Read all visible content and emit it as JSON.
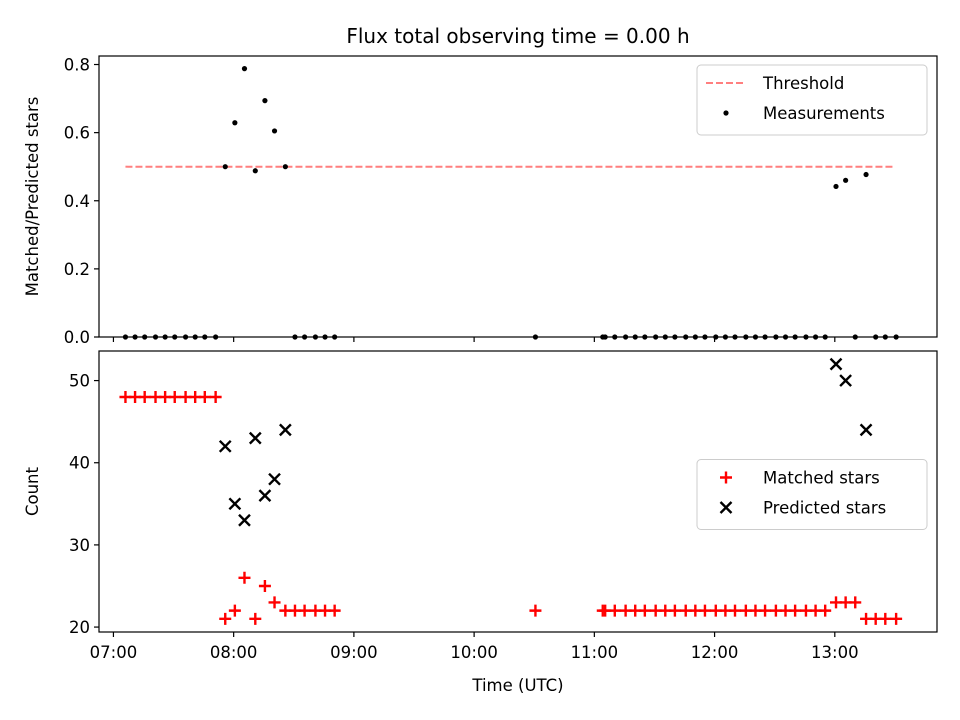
{
  "chart_data": {
    "title": "Flux total observing time = 0.00 h",
    "xlabel": "Time (UTC)",
    "x_unit": "hours UTC",
    "xlim": [
      6.88,
      13.85
    ],
    "xticks": [
      {
        "value": 7,
        "label": "07:00"
      },
      {
        "value": 8,
        "label": "08:00"
      },
      {
        "value": 9,
        "label": "09:00"
      },
      {
        "value": 10,
        "label": "10:00"
      },
      {
        "value": 11,
        "label": "11:00"
      },
      {
        "value": 12,
        "label": "12:00"
      },
      {
        "value": 13,
        "label": "13:00"
      }
    ],
    "panels": [
      {
        "type": "scatter",
        "ylabel": "Matched/Predicted stars",
        "ylim": [
          0,
          0.825
        ],
        "yticks": [
          {
            "value": 0,
            "label": "0.0"
          },
          {
            "value": 0.2,
            "label": "0.2"
          },
          {
            "value": 0.4,
            "label": "0.4"
          },
          {
            "value": 0.6,
            "label": "0.6"
          },
          {
            "value": 0.8,
            "label": "0.8"
          }
        ],
        "legend_position": "top-right",
        "threshold": {
          "name": "Threshold",
          "value": 0.5,
          "x_start": 7.1,
          "x_end": 13.5,
          "color": "#ff7f7f",
          "style": "dashed"
        },
        "series": [
          {
            "name": "Measurements",
            "color": "#000000",
            "marker": "dot",
            "points": [
              [
                7.1,
                0
              ],
              [
                7.18,
                0
              ],
              [
                7.26,
                0
              ],
              [
                7.35,
                0
              ],
              [
                7.43,
                0
              ],
              [
                7.51,
                0
              ],
              [
                7.6,
                0
              ],
              [
                7.68,
                0
              ],
              [
                7.76,
                0
              ],
              [
                7.85,
                0
              ],
              [
                7.93,
                0.5
              ],
              [
                8.01,
                0.629
              ],
              [
                8.09,
                0.788
              ],
              [
                8.18,
                0.488
              ],
              [
                8.26,
                0.694
              ],
              [
                8.34,
                0.605
              ],
              [
                8.43,
                0.5
              ],
              [
                8.51,
                0
              ],
              [
                8.59,
                0
              ],
              [
                8.68,
                0
              ],
              [
                8.76,
                0
              ],
              [
                8.84,
                0
              ],
              [
                10.51,
                0
              ],
              [
                11.07,
                0
              ],
              [
                11.09,
                0
              ],
              [
                11.17,
                0
              ],
              [
                11.26,
                0
              ],
              [
                11.34,
                0
              ],
              [
                11.42,
                0
              ],
              [
                11.51,
                0
              ],
              [
                11.59,
                0
              ],
              [
                11.67,
                0
              ],
              [
                11.76,
                0
              ],
              [
                11.84,
                0
              ],
              [
                11.92,
                0
              ],
              [
                12.01,
                0
              ],
              [
                12.09,
                0
              ],
              [
                12.17,
                0
              ],
              [
                12.26,
                0
              ],
              [
                12.34,
                0
              ],
              [
                12.42,
                0
              ],
              [
                12.51,
                0
              ],
              [
                12.59,
                0
              ],
              [
                12.67,
                0
              ],
              [
                12.76,
                0
              ],
              [
                12.84,
                0
              ],
              [
                12.92,
                0
              ],
              [
                13.01,
                0.442
              ],
              [
                13.09,
                0.46
              ],
              [
                13.17,
                0
              ],
              [
                13.26,
                0.477
              ],
              [
                13.34,
                0
              ],
              [
                13.42,
                0
              ],
              [
                13.51,
                0
              ]
            ]
          }
        ]
      },
      {
        "type": "scatter",
        "ylabel": "Count",
        "ylim": [
          19.4,
          53.6
        ],
        "yticks": [
          {
            "value": 20,
            "label": "20"
          },
          {
            "value": 30,
            "label": "30"
          },
          {
            "value": 40,
            "label": "40"
          },
          {
            "value": 50,
            "label": "50"
          }
        ],
        "legend_position": "center-right",
        "series": [
          {
            "name": "Matched stars",
            "color": "#ff0000",
            "marker": "plus",
            "points": [
              [
                7.1,
                48
              ],
              [
                7.18,
                48
              ],
              [
                7.26,
                48
              ],
              [
                7.35,
                48
              ],
              [
                7.43,
                48
              ],
              [
                7.51,
                48
              ],
              [
                7.6,
                48
              ],
              [
                7.68,
                48
              ],
              [
                7.76,
                48
              ],
              [
                7.85,
                48
              ],
              [
                7.93,
                21
              ],
              [
                8.01,
                22
              ],
              [
                8.09,
                26
              ],
              [
                8.18,
                21
              ],
              [
                8.26,
                25
              ],
              [
                8.34,
                23
              ],
              [
                8.43,
                22
              ],
              [
                8.51,
                22
              ],
              [
                8.59,
                22
              ],
              [
                8.68,
                22
              ],
              [
                8.76,
                22
              ],
              [
                8.84,
                22
              ],
              [
                10.51,
                22
              ],
              [
                11.07,
                22
              ],
              [
                11.09,
                22
              ],
              [
                11.17,
                22
              ],
              [
                11.26,
                22
              ],
              [
                11.34,
                22
              ],
              [
                11.42,
                22
              ],
              [
                11.51,
                22
              ],
              [
                11.59,
                22
              ],
              [
                11.67,
                22
              ],
              [
                11.76,
                22
              ],
              [
                11.84,
                22
              ],
              [
                11.92,
                22
              ],
              [
                12.01,
                22
              ],
              [
                12.09,
                22
              ],
              [
                12.17,
                22
              ],
              [
                12.26,
                22
              ],
              [
                12.34,
                22
              ],
              [
                12.42,
                22
              ],
              [
                12.51,
                22
              ],
              [
                12.59,
                22
              ],
              [
                12.67,
                22
              ],
              [
                12.76,
                22
              ],
              [
                12.84,
                22
              ],
              [
                12.92,
                22
              ],
              [
                13.01,
                23
              ],
              [
                13.09,
                23
              ],
              [
                13.17,
                23
              ],
              [
                13.26,
                21
              ],
              [
                13.34,
                21
              ],
              [
                13.42,
                21
              ],
              [
                13.51,
                21
              ]
            ]
          },
          {
            "name": "Predicted stars",
            "color": "#000000",
            "marker": "cross",
            "points": [
              [
                7.93,
                42
              ],
              [
                8.01,
                35
              ],
              [
                8.09,
                33
              ],
              [
                8.18,
                43
              ],
              [
                8.26,
                36
              ],
              [
                8.34,
                38
              ],
              [
                8.43,
                44
              ],
              [
                13.01,
                52
              ],
              [
                13.09,
                50
              ],
              [
                13.26,
                44
              ]
            ]
          }
        ]
      }
    ]
  }
}
